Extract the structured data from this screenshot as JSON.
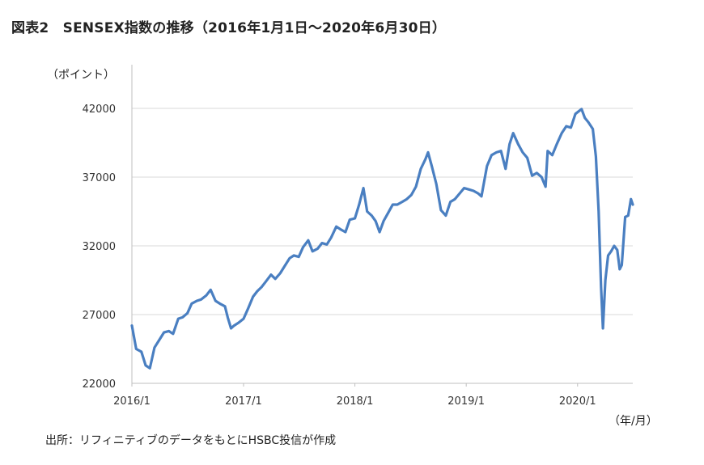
{
  "title": "図表2　SENSEX指数の推移（2016年1月1日～2020年6月30日）",
  "source": "出所：リフィニティブのデータをもとにHSBC投信が作成",
  "chart_data": {
    "type": "line",
    "title": "図表2　SENSEX指数の推移（2016年1月1日～2020年6月30日）",
    "ylabel": "（ポイント）",
    "xlabel": "（年/月）",
    "ylim": [
      22000,
      44000
    ],
    "yticks": [
      22000,
      27000,
      32000,
      37000,
      42000
    ],
    "ytick_labels": [
      "22000",
      "27000",
      "32000",
      "37000",
      "42000"
    ],
    "xlim": [
      "2016-01-01",
      "2020-06-30"
    ],
    "xticks": [
      "2016-01-01",
      "2017-01-01",
      "2018-01-01",
      "2019-01-01",
      "2020-01-01"
    ],
    "xtick_labels": [
      "2016/1",
      "2017/1",
      "2018/1",
      "2019/1",
      "2020/1"
    ],
    "grid": "horizontal",
    "line_color": "#4a7fc1",
    "series": [
      {
        "x": [
          "2016-01-01",
          "2016-01-15",
          "2016-02-01",
          "2016-02-15",
          "2016-02-29",
          "2016-03-15",
          "2016-04-01",
          "2016-04-15",
          "2016-05-01",
          "2016-05-15",
          "2016-06-01",
          "2016-06-15",
          "2016-07-01",
          "2016-07-15",
          "2016-08-01",
          "2016-08-15",
          "2016-09-01",
          "2016-09-15",
          "2016-10-01",
          "2016-10-15",
          "2016-11-01",
          "2016-11-10",
          "2016-11-21",
          "2016-12-01",
          "2016-12-15",
          "2017-01-01",
          "2017-01-15",
          "2017-02-01",
          "2017-02-15",
          "2017-03-01",
          "2017-03-15",
          "2017-04-01",
          "2017-04-15",
          "2017-05-01",
          "2017-05-15",
          "2017-06-01",
          "2017-06-15",
          "2017-07-01",
          "2017-07-15",
          "2017-08-01",
          "2017-08-15",
          "2017-09-01",
          "2017-09-15",
          "2017-10-01",
          "2017-10-15",
          "2017-11-01",
          "2017-11-15",
          "2017-12-01",
          "2017-12-15",
          "2018-01-01",
          "2018-01-15",
          "2018-01-29",
          "2018-02-10",
          "2018-02-25",
          "2018-03-10",
          "2018-03-23",
          "2018-04-05",
          "2018-04-20",
          "2018-05-05",
          "2018-05-20",
          "2018-06-05",
          "2018-06-20",
          "2018-07-05",
          "2018-07-20",
          "2018-08-05",
          "2018-08-20",
          "2018-08-29",
          "2018-09-10",
          "2018-09-25",
          "2018-10-10",
          "2018-10-26",
          "2018-11-10",
          "2018-11-25",
          "2018-12-10",
          "2018-12-25",
          "2019-01-10",
          "2019-01-25",
          "2019-02-10",
          "2019-02-20",
          "2019-03-10",
          "2019-03-25",
          "2019-04-10",
          "2019-04-25",
          "2019-05-10",
          "2019-05-23",
          "2019-06-04",
          "2019-06-20",
          "2019-07-05",
          "2019-07-20",
          "2019-08-05",
          "2019-08-20",
          "2019-09-05",
          "2019-09-18",
          "2019-09-25",
          "2019-10-10",
          "2019-10-25",
          "2019-11-10",
          "2019-11-25",
          "2019-12-10",
          "2019-12-25",
          "2020-01-14",
          "2020-01-25",
          "2020-02-05",
          "2020-02-20",
          "2020-03-01",
          "2020-03-10",
          "2020-03-18",
          "2020-03-24",
          "2020-04-01",
          "2020-04-10",
          "2020-04-20",
          "2020-04-30",
          "2020-05-10",
          "2020-05-18",
          "2020-05-25",
          "2020-06-05",
          "2020-06-15",
          "2020-06-24",
          "2020-06-30"
        ],
        "values": [
          26200,
          24500,
          24300,
          23300,
          23100,
          24600,
          25200,
          25700,
          25800,
          25600,
          26700,
          26800,
          27100,
          27800,
          28000,
          28100,
          28400,
          28800,
          28000,
          27800,
          27600,
          26800,
          26000,
          26200,
          26400,
          26700,
          27400,
          28300,
          28700,
          29000,
          29400,
          29900,
          29600,
          30000,
          30500,
          31100,
          31300,
          31200,
          31900,
          32400,
          31600,
          31800,
          32200,
          32100,
          32600,
          33400,
          33200,
          33000,
          33900,
          34000,
          35000,
          36200,
          34500,
          34200,
          33800,
          33000,
          33800,
          34400,
          35000,
          35000,
          35200,
          35400,
          35700,
          36300,
          37600,
          38300,
          38800,
          37800,
          36500,
          34600,
          34200,
          35200,
          35400,
          35800,
          36200,
          36100,
          36000,
          35800,
          35600,
          37800,
          38600,
          38800,
          38900,
          37600,
          39400,
          40200,
          39400,
          38800,
          38400,
          37100,
          37300,
          37000,
          36300,
          38900,
          38600,
          39400,
          40200,
          40700,
          40600,
          41600,
          41950,
          41300,
          41000,
          40500,
          38500,
          34500,
          29000,
          26000,
          29500,
          31300,
          31600,
          32000,
          31700,
          30300,
          30600,
          34100,
          34200,
          35400,
          35000
        ]
      }
    ]
  }
}
